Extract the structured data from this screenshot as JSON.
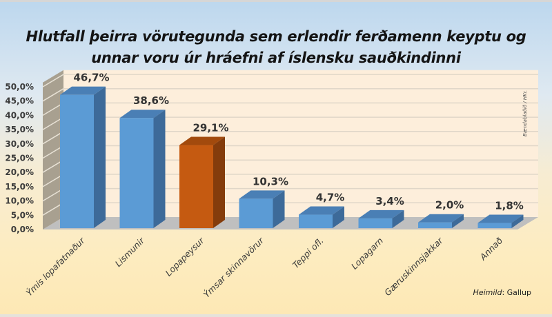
{
  "title_lines": [
    "Hlutfall þeirra vörutegunda sem erlendir ferðamenn keyptu og",
    "unnar voru úr hráefni af íslensku sauðkindinni"
  ],
  "source": {
    "label": "Heimild",
    "value": ": Gallup"
  },
  "credit": "Bændablaðið / HKr.",
  "colors": {
    "bar_front": "#5b9bd5",
    "bar_top": "#4a7fb5",
    "bar_side": "#3d6a99",
    "highlight_front": "#c55a11",
    "highlight_top": "#a24a0d",
    "highlight_side": "#843c0c",
    "back_wall": "#fdeedb",
    "side_wall": "#a8a090",
    "floor": "#bfbfbf",
    "gridline": "#e0d6c8"
  },
  "chart_data": {
    "type": "bar",
    "style": "3d-column",
    "title": "Hlutfall þeirra vörutegunda sem erlendir ferðamenn keyptu og unnar voru úr hráefni af íslensku sauðkindinni",
    "xlabel": "",
    "ylabel": "",
    "ylim": [
      0,
      50
    ],
    "yticks": [
      "0,0%",
      "5,0%",
      "10,0%",
      "15,0%",
      "20,0%",
      "25,0%",
      "30,0%",
      "35,0%",
      "40,0%",
      "45,0%",
      "50,0%"
    ],
    "grid": true,
    "legend": "none",
    "categories": [
      "Ýmis lopafatnaður",
      "Lismunir",
      "Lopapeysur",
      "Ýmsar skinnavörur",
      "Teppi ofl.",
      "Lopagarn",
      "Gæruskinnsjakkar",
      "Annað"
    ],
    "values": [
      46.7,
      38.6,
      29.1,
      10.3,
      4.7,
      3.4,
      2.0,
      1.8
    ],
    "value_labels": [
      "46,7%",
      "38,6%",
      "29,1%",
      "10,3%",
      "4,7%",
      "3,4%",
      "2,0%",
      "1,8%"
    ],
    "highlight_index": 2,
    "annotations": [
      "Heimild: Gallup",
      "Bændablaðið / HKr."
    ]
  }
}
